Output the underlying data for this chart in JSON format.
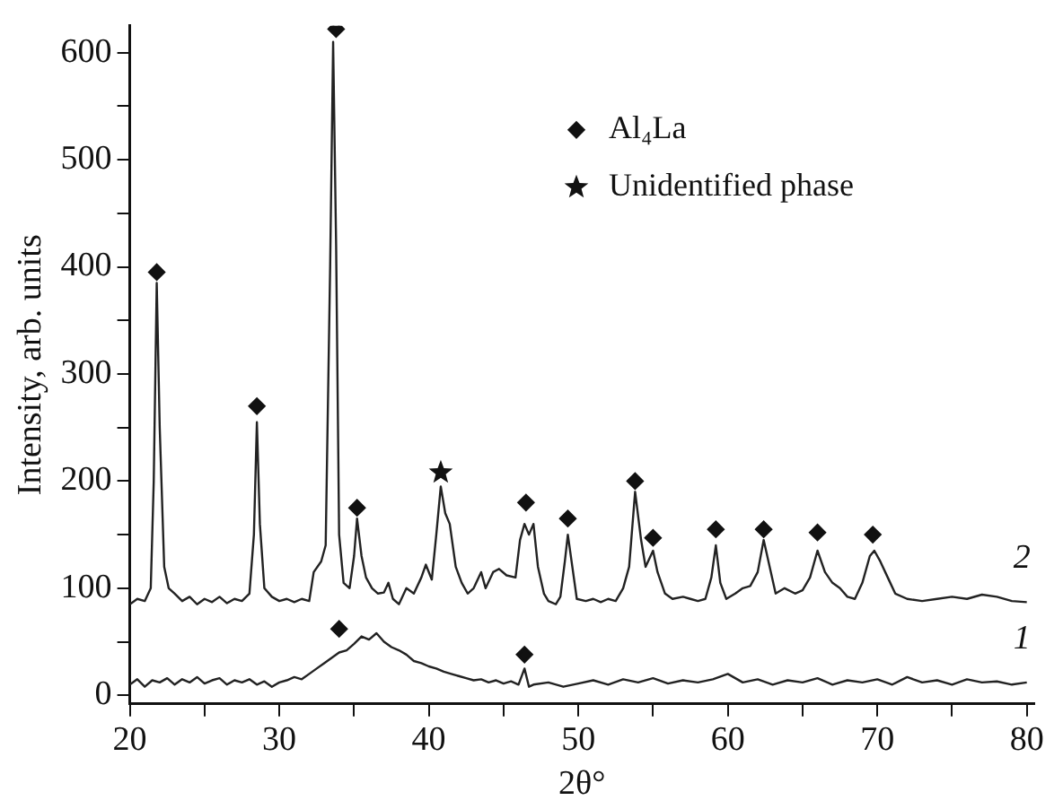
{
  "chart_data": {
    "type": "line",
    "xlabel": "2θ°",
    "ylabel": "Intensity, arb. units",
    "xlim": [
      20,
      80.5
    ],
    "ylim": [
      -8,
      625
    ],
    "xticks": [
      20,
      {
        "value": 25,
        "label": null
      },
      30,
      {
        "value": 35,
        "label": null
      },
      40,
      {
        "value": 45,
        "label": null
      },
      50,
      {
        "value": 55,
        "label": null
      },
      60,
      {
        "value": 65,
        "label": null
      },
      70,
      {
        "value": 75,
        "label": null
      },
      80
    ],
    "yticks": [
      0,
      {
        "value": 50,
        "label": null
      },
      100,
      {
        "value": 150,
        "label": null
      },
      200,
      {
        "value": 250,
        "label": null
      },
      300,
      {
        "value": 350,
        "label": null
      },
      400,
      {
        "value": 450,
        "label": null
      },
      500,
      {
        "value": 550,
        "label": null
      },
      600
    ],
    "grid": false,
    "legend": "top right",
    "line_style": "solid",
    "series": [
      {
        "name": "2",
        "color": "#222222",
        "x": [
          20,
          20.5,
          21,
          21.4,
          21.6,
          21.8,
          22.0,
          22.3,
          22.6,
          23,
          23.5,
          24,
          24.5,
          25,
          25.5,
          26,
          26.5,
          27,
          27.5,
          28,
          28.3,
          28.5,
          28.7,
          29,
          29.5,
          30,
          30.5,
          31,
          31.5,
          32,
          32.3,
          32.8,
          33.1,
          33.4,
          33.6,
          33.8,
          34.0,
          34.3,
          34.7,
          35.0,
          35.2,
          35.5,
          35.8,
          36.2,
          36.6,
          37,
          37.3,
          37.6,
          38,
          38.5,
          39,
          39.5,
          39.8,
          40.2,
          40.5,
          40.8,
          41.1,
          41.4,
          41.8,
          42.2,
          42.6,
          43,
          43.5,
          43.8,
          44.3,
          44.7,
          45.2,
          45.8,
          46.1,
          46.4,
          46.7,
          47,
          47.3,
          47.7,
          48,
          48.5,
          48.8,
          49.1,
          49.3,
          49.6,
          49.9,
          50.5,
          51,
          51.5,
          52,
          52.5,
          53,
          53.4,
          53.8,
          54.2,
          54.5,
          55,
          55.3,
          55.8,
          56.3,
          57,
          57.5,
          58,
          58.5,
          58.9,
          59.2,
          59.5,
          59.9,
          60.5,
          61,
          61.5,
          62,
          62.4,
          62.8,
          63.2,
          63.8,
          64.5,
          65,
          65.5,
          66,
          66.5,
          67,
          67.5,
          68,
          68.5,
          69,
          69.5,
          69.8,
          70.2,
          70.7,
          71.2,
          72,
          73,
          74,
          75,
          76,
          77,
          78,
          79,
          80
        ],
        "values": [
          85,
          90,
          88,
          100,
          200,
          385,
          250,
          120,
          100,
          95,
          88,
          92,
          85,
          90,
          87,
          92,
          86,
          90,
          88,
          95,
          150,
          255,
          160,
          100,
          92,
          88,
          90,
          87,
          90,
          88,
          115,
          125,
          140,
          400,
          610,
          420,
          150,
          105,
          100,
          130,
          165,
          130,
          110,
          100,
          95,
          96,
          105,
          90,
          85,
          100,
          95,
          110,
          122,
          108,
          150,
          195,
          170,
          160,
          120,
          105,
          95,
          100,
          115,
          100,
          115,
          118,
          112,
          110,
          145,
          160,
          150,
          160,
          120,
          95,
          88,
          85,
          92,
          125,
          150,
          120,
          90,
          88,
          90,
          87,
          90,
          88,
          100,
          120,
          190,
          145,
          120,
          135,
          115,
          95,
          90,
          92,
          90,
          88,
          90,
          110,
          140,
          105,
          90,
          95,
          100,
          102,
          115,
          145,
          120,
          95,
          100,
          95,
          98,
          110,
          135,
          115,
          105,
          100,
          92,
          90,
          105,
          130,
          135,
          125,
          110,
          95,
          90,
          88,
          90,
          92,
          90,
          94,
          92,
          88,
          87
        ]
      },
      {
        "name": "1",
        "color": "#222222",
        "x": [
          20,
          20.5,
          21,
          21.5,
          22,
          22.5,
          23,
          23.5,
          24,
          24.5,
          25,
          25.5,
          26,
          26.5,
          27,
          27.5,
          28,
          28.5,
          29,
          29.5,
          30,
          30.5,
          31,
          31.5,
          32,
          32.5,
          33,
          33.5,
          34,
          34.5,
          35,
          35.5,
          36,
          36.5,
          37,
          37.5,
          38,
          38.5,
          39,
          39.5,
          40,
          40.5,
          41,
          41.5,
          42,
          42.5,
          43,
          43.5,
          44,
          44.5,
          45,
          45.5,
          46,
          46.4,
          46.7,
          47,
          48,
          49,
          50,
          51,
          52,
          53,
          54,
          55,
          56,
          57,
          58,
          59,
          60,
          61,
          62,
          63,
          64,
          65,
          66,
          67,
          68,
          69,
          70,
          71,
          72,
          73,
          74,
          75,
          76,
          77,
          78,
          79,
          80
        ],
        "values": [
          10,
          15,
          8,
          14,
          12,
          16,
          10,
          15,
          12,
          17,
          11,
          14,
          16,
          10,
          14,
          12,
          15,
          10,
          13,
          8,
          12,
          14,
          17,
          15,
          20,
          25,
          30,
          35,
          40,
          42,
          48,
          55,
          52,
          58,
          50,
          45,
          42,
          38,
          32,
          30,
          27,
          25,
          22,
          20,
          18,
          16,
          14,
          15,
          12,
          14,
          11,
          13,
          10,
          25,
          8,
          10,
          12,
          8,
          11,
          14,
          10,
          15,
          12,
          16,
          11,
          14,
          12,
          15,
          20,
          12,
          15,
          10,
          14,
          12,
          16,
          10,
          14,
          12,
          15,
          10,
          17,
          12,
          14,
          10,
          15,
          12,
          13,
          10,
          12
        ]
      },
      {
        "name": "Al₄La",
        "type": "scatter",
        "marker": "diamond",
        "color": "#111111",
        "x": [
          21.8,
          28.5,
          33.8,
          35.2,
          46.5,
          49.3,
          53.8,
          55,
          59.2,
          62.4,
          66,
          69.7,
          34,
          46.4
        ],
        "values": [
          395,
          270,
          622,
          175,
          180,
          165,
          200,
          147,
          155,
          155,
          152,
          150,
          62,
          38
        ]
      },
      {
        "name": "Unidentified phase",
        "type": "scatter",
        "marker": "star",
        "color": "#111111",
        "x": [
          40.8
        ],
        "values": [
          208
        ]
      }
    ]
  }
}
